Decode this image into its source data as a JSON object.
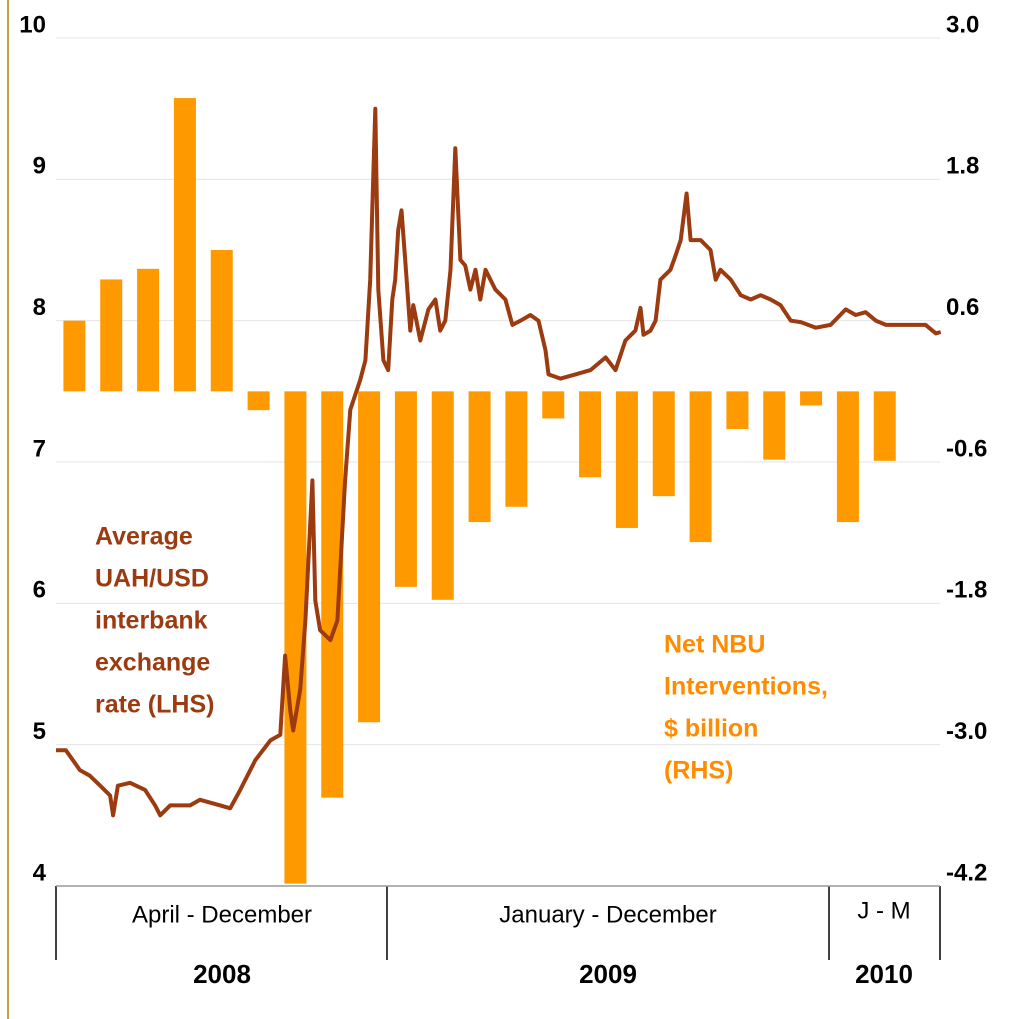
{
  "chart_data": {
    "type": "bar+line",
    "xlim": [
      0,
      24
    ],
    "ylim": [
      4,
      10
    ],
    "yticks": [
      4,
      5,
      6,
      7,
      8,
      9,
      10
    ],
    "y2lim": [
      -4.2,
      3.0
    ],
    "y2ticks": [
      {
        "value": 3.0,
        "label": "3.0"
      },
      1.8,
      0.6,
      -0.6,
      -1.8,
      {
        "value": -3.0,
        "label": "-3.0"
      },
      -4.2
    ],
    "grid": true,
    "bars": {
      "axis": "y2",
      "color": "#ff9900",
      "categories": [
        null,
        null,
        null,
        null,
        null,
        null,
        null,
        null,
        null,
        null,
        null,
        null,
        null,
        null,
        null,
        null,
        null,
        null,
        null,
        null,
        null,
        null,
        null
      ],
      "values": [
        0.6,
        0.95,
        1.04,
        2.49,
        1.2,
        -0.16,
        -4.18,
        -3.45,
        -2.81,
        -1.66,
        -1.77,
        -1.11,
        -0.98,
        -0.23,
        -0.73,
        -1.16,
        -0.89,
        -1.28,
        -0.32,
        -0.58,
        -0.12,
        -1.11,
        -0.59
      ]
    },
    "line": {
      "axis": "y",
      "color": "#9c3a10",
      "x": [
        0,
        0.27,
        0.65,
        0.92,
        1.2,
        1.47,
        1.55,
        1.68,
        2.01,
        2.42,
        2.69,
        2.83,
        3.1,
        3.64,
        3.91,
        4.46,
        4.73,
        5.0,
        5.41,
        5.82,
        6.09,
        6.22,
        6.36,
        6.44,
        6.63,
        6.77,
        6.96,
        7.04,
        7.17,
        7.45,
        7.64,
        7.85,
        7.99,
        8.26,
        8.4,
        8.53,
        8.67,
        8.75,
        8.89,
        9.02,
        9.13,
        9.21,
        9.29,
        9.38,
        9.48,
        9.62,
        9.7,
        9.89,
        10.11,
        10.3,
        10.43,
        10.57,
        10.71,
        10.84,
        10.98,
        11.11,
        11.25,
        11.39,
        11.52,
        11.66,
        11.93,
        12.2,
        12.39,
        12.61,
        12.88,
        13.1,
        13.29,
        13.37,
        13.7,
        14.1,
        14.51,
        14.92,
        15.19,
        15.46,
        15.73,
        15.87,
        15.95,
        16.14,
        16.28,
        16.41,
        16.68,
        16.82,
        16.96,
        17.12,
        17.23,
        17.5,
        17.77,
        17.91,
        18.04,
        18.32,
        18.59,
        18.86,
        19.13,
        19.4,
        19.67,
        19.95,
        20.22,
        20.63,
        21.03,
        21.44,
        21.71,
        21.98,
        22.26,
        22.53,
        22.93,
        23.61,
        23.89,
        24.02
      ],
      "values": [
        4.96,
        4.96,
        4.82,
        4.78,
        4.71,
        4.64,
        4.5,
        4.71,
        4.73,
        4.68,
        4.57,
        4.5,
        4.57,
        4.57,
        4.61,
        4.57,
        4.55,
        4.68,
        4.89,
        5.03,
        5.07,
        5.63,
        5.24,
        5.1,
        5.39,
        5.88,
        6.87,
        6.02,
        5.81,
        5.74,
        5.88,
        6.87,
        7.37,
        7.58,
        7.72,
        8.29,
        9.5,
        8.22,
        7.72,
        7.65,
        8.15,
        8.29,
        8.64,
        8.78,
        8.43,
        7.93,
        8.11,
        7.86,
        8.08,
        8.15,
        7.93,
        8.0,
        8.36,
        9.22,
        8.43,
        8.39,
        8.22,
        8.36,
        8.15,
        8.36,
        8.22,
        8.15,
        7.97,
        8.0,
        8.04,
        8.0,
        7.79,
        7.62,
        7.59,
        7.62,
        7.65,
        7.74,
        7.65,
        7.86,
        7.93,
        8.09,
        7.9,
        7.93,
        8.0,
        8.29,
        8.36,
        8.46,
        8.57,
        8.9,
        8.57,
        8.57,
        8.5,
        8.29,
        8.36,
        8.29,
        8.18,
        8.15,
        8.18,
        8.15,
        8.11,
        8.0,
        7.99,
        7.95,
        7.97,
        8.08,
        8.04,
        8.06,
        8.0,
        7.97,
        7.97,
        7.97,
        7.91,
        7.92
      ]
    },
    "annotations": {
      "lhs": [
        "Average",
        "UAH/USD",
        "interbank",
        "exchange",
        "rate (LHS)"
      ],
      "rhs": [
        "Net NBU",
        "Interventions,",
        "$ billion",
        "(RHS)"
      ]
    },
    "periods": [
      {
        "label": "April - December",
        "year": "2008"
      },
      {
        "label": "January - December",
        "year": "2009"
      },
      {
        "label": "J - M",
        "year": "2010"
      }
    ]
  }
}
